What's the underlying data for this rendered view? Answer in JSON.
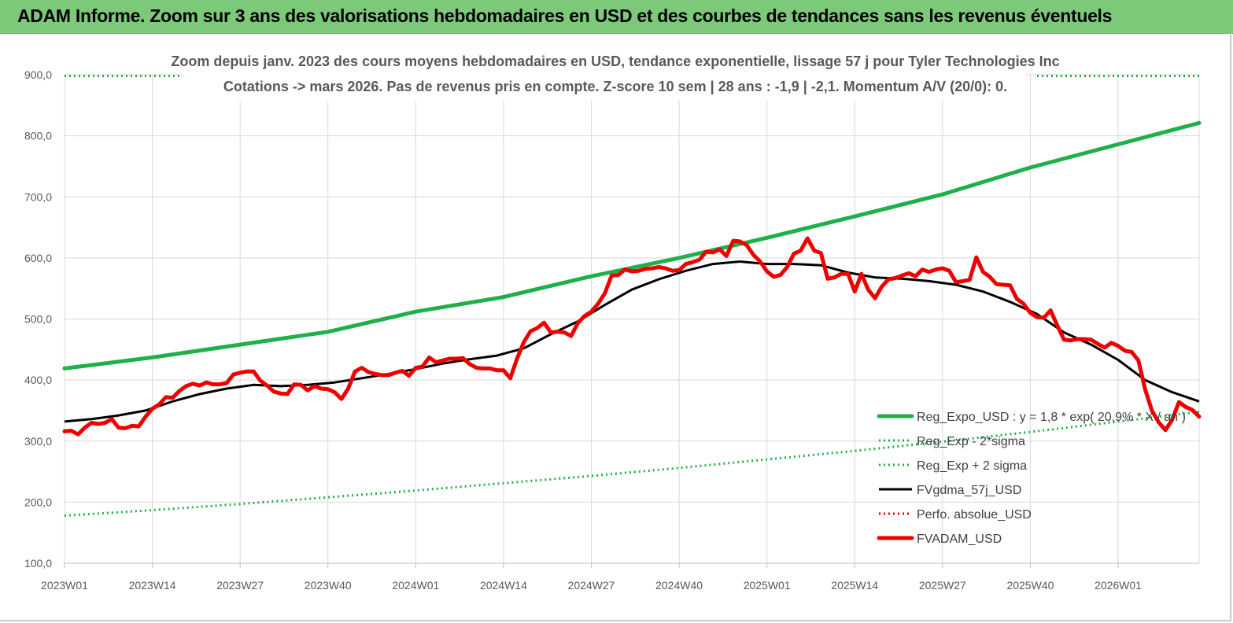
{
  "header": {
    "title": "ADAM Informe. Zoom sur 3 ans des valorisations hebdomadaires en USD et des courbes de tendances sans les revenus éventuels"
  },
  "chart_data": {
    "type": "line",
    "subtitle_line1": "Zoom depuis janv. 2023 des cours moyens hebdomadaires en USD, tendance exponentielle, lissage 57 j pour Tyler Technologies Inc",
    "subtitle_line2": "Cotations -> mars 2026. Pas de revenus pris en  compte. Z-score 10 sem  | 28 ans : -1,9 | -2,1. Momentum A/V (20/0): 0.",
    "ylim": [
      100,
      900
    ],
    "yticks": [
      "100,0",
      "200,0",
      "300,0",
      "400,0",
      "500,0",
      "600,0",
      "700,0",
      "800,0",
      "900,0"
    ],
    "ytick_values": [
      100,
      200,
      300,
      400,
      500,
      600,
      700,
      800,
      900
    ],
    "xlim": [
      0,
      168
    ],
    "xtick_labels": [
      "2023W01",
      "2023W14",
      "2023W27",
      "2023W40",
      "2024W01",
      "2024W14",
      "2024W27",
      "2024W40",
      "2025W01",
      "2025W14",
      "2025W27",
      "2025W40",
      "2026W01"
    ],
    "xtick_weeks": [
      0,
      13,
      26,
      39,
      52,
      65,
      78,
      91,
      104,
      117,
      130,
      143,
      156
    ],
    "grid": true,
    "legend_position": "bottom-right",
    "colors": {
      "reg_expo": "#1fb04a",
      "reg_band": "#1fb04a",
      "fvgdma": "#000000",
      "perfo": "#e00000",
      "fvadam": "#ee0000",
      "grid": "#d9d9d9"
    },
    "series": [
      {
        "name": "Reg_Expo_USD : y = 1,8 * exp( 20,9% * X / an )",
        "style": "solid-thick",
        "color": "#1fb04a",
        "x": [
          0,
          13,
          26,
          39,
          52,
          65,
          78,
          91,
          104,
          117,
          130,
          143,
          156,
          168
        ],
        "values": [
          419,
          437,
          458,
          479,
          512,
          536,
          570,
          600,
          633,
          668,
          704,
          748,
          786,
          821
        ]
      },
      {
        "name": "Reg_Exp - 2*sigma",
        "style": "dotted",
        "color": "#1fb04a",
        "x": [
          0,
          13,
          26,
          39,
          52,
          65,
          78,
          91,
          104,
          117,
          130,
          143,
          156,
          168
        ],
        "values": [
          178,
          187,
          197,
          208,
          219,
          231,
          243,
          256,
          270,
          284,
          299,
          315,
          332,
          348
        ]
      },
      {
        "name": "Reg_Exp + 2 sigma",
        "style": "dotted",
        "color": "#1fb04a",
        "x": [
          0,
          17,
          144,
          168
        ],
        "values": [
          898,
          898,
          898,
          898
        ]
      },
      {
        "name": "FVgdma_57j_USD",
        "style": "solid",
        "color": "#000000",
        "x": [
          0,
          4,
          8,
          12,
          16,
          20,
          24,
          28,
          32,
          36,
          40,
          44,
          48,
          52,
          56,
          60,
          64,
          68,
          72,
          76,
          80,
          84,
          88,
          92,
          96,
          100,
          104,
          108,
          112,
          116,
          120,
          124,
          128,
          132,
          136,
          140,
          144,
          148,
          152,
          156,
          160,
          164,
          168
        ],
        "values": [
          332,
          336,
          342,
          350,
          365,
          377,
          386,
          392,
          390,
          392,
          396,
          403,
          410,
          418,
          427,
          434,
          440,
          452,
          475,
          496,
          523,
          548,
          565,
          579,
          590,
          594,
          590,
          590,
          588,
          576,
          568,
          566,
          562,
          556,
          545,
          528,
          508,
          478,
          458,
          433,
          400,
          380,
          365
        ]
      },
      {
        "name": "Perfo. absolue_USD",
        "style": "dotted",
        "color": "#e00000",
        "x": [],
        "values": []
      },
      {
        "name": "FVADAM_USD",
        "style": "solid-thick",
        "color": "#ee0000",
        "x": [
          0,
          1,
          2,
          3,
          4,
          5,
          6,
          7,
          8,
          9,
          10,
          11,
          12,
          13,
          14,
          15,
          16,
          17,
          18,
          19,
          20,
          21,
          22,
          23,
          24,
          25,
          26,
          27,
          28,
          29,
          30,
          31,
          32,
          33,
          34,
          35,
          36,
          37,
          38,
          39,
          40,
          41,
          42,
          43,
          44,
          45,
          46,
          47,
          48,
          49,
          50,
          51,
          52,
          53,
          54,
          55,
          56,
          57,
          58,
          59,
          60,
          61,
          62,
          63,
          64,
          65,
          66,
          67,
          68,
          69,
          70,
          71,
          72,
          73,
          74,
          75,
          76,
          77,
          78,
          79,
          80,
          81,
          82,
          83,
          84,
          85,
          86,
          87,
          88,
          89,
          90,
          91,
          92,
          93,
          94,
          95,
          96,
          97,
          98,
          99,
          100,
          101,
          102,
          103,
          104,
          105,
          106,
          107,
          108,
          109,
          110,
          111,
          112,
          113,
          114,
          115,
          116,
          117,
          118,
          119,
          120,
          121,
          122,
          123,
          124,
          125,
          126,
          127,
          128,
          129,
          130,
          131,
          132,
          133,
          134,
          135,
          136,
          137,
          138,
          139,
          140,
          141,
          142,
          143,
          144,
          145,
          146,
          147,
          148,
          149,
          150,
          151,
          152,
          153,
          154,
          155,
          156,
          157,
          158,
          159,
          160,
          161,
          162,
          163,
          164,
          165,
          166,
          167,
          168
        ],
        "values": [
          316,
          317,
          311,
          322,
          330,
          328,
          330,
          336,
          322,
          321,
          325,
          324,
          340,
          353,
          360,
          372,
          371,
          382,
          390,
          394,
          391,
          396,
          393,
          393,
          395,
          409,
          412,
          414,
          414,
          399,
          391,
          381,
          378,
          377,
          393,
          392,
          383,
          390,
          386,
          385,
          380,
          369,
          386,
          414,
          420,
          413,
          410,
          408,
          408,
          412,
          415,
          407,
          420,
          422,
          437,
          429,
          432,
          435,
          435,
          436,
          426,
          420,
          419,
          419,
          416,
          416,
          403,
          435,
          462,
          480,
          485,
          494,
          478,
          479,
          478,
          472,
          493,
          505,
          512,
          525,
          542,
          571,
          572,
          581,
          578,
          579,
          582,
          583,
          585,
          583,
          579,
          580,
          590,
          593,
          597,
          610,
          609,
          614,
          603,
          628,
          627,
          621,
          605,
          594,
          578,
          569,
          572,
          585,
          607,
          612,
          632,
          612,
          608,
          566,
          568,
          574,
          574,
          545,
          574,
          548,
          534,
          553,
          565,
          567,
          571,
          575,
          570,
          581,
          577,
          581,
          583,
          579,
          560,
          562,
          564,
          601,
          577,
          569,
          557,
          556,
          555,
          533,
          525,
          510,
          503,
          502,
          514,
          489,
          466,
          465,
          467,
          467,
          466,
          459,
          453,
          461,
          456,
          448,
          446,
          432,
          385,
          350,
          331,
          318,
          335,
          364,
          356,
          351,
          340
        ]
      }
    ],
    "legend": [
      {
        "label": "Reg_Expo_USD : y = 1,8 * exp( 20,9% * X / an )",
        "style": "solid-thick",
        "color": "#1fb04a"
      },
      {
        "label": "Reg_Exp - 2*sigma",
        "style": "dotted",
        "color": "#1fb04a"
      },
      {
        "label": "Reg_Exp + 2 sigma",
        "style": "dotted",
        "color": "#1fb04a"
      },
      {
        "label": "FVgdma_57j_USD",
        "style": "solid",
        "color": "#000000"
      },
      {
        "label": "Perfo. absolue_USD",
        "style": "dotted",
        "color": "#e00000"
      },
      {
        "label": "FVADAM_USD",
        "style": "solid-thick",
        "color": "#ee0000"
      }
    ]
  }
}
